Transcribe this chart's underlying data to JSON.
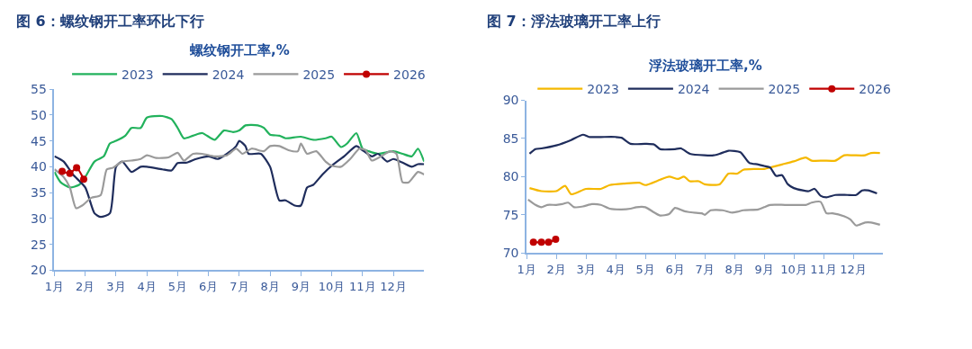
{
  "chart_data": [
    {
      "type": "line",
      "title": "图 6：螺纹钢开工率环比下行",
      "subtitle": "螺纹钢开工率,%",
      "legend": "top",
      "xlim": [
        1,
        13
      ],
      "xticks": [
        {
          "value": 1,
          "label": "1月"
        },
        {
          "value": 2,
          "label": "2月"
        },
        {
          "value": 3,
          "label": "3月"
        },
        {
          "value": 4,
          "label": "4月"
        },
        {
          "value": 5,
          "label": "5月"
        },
        {
          "value": 6,
          "label": "6月"
        },
        {
          "value": 7,
          "label": "7月"
        },
        {
          "value": 8,
          "label": "8月"
        },
        {
          "value": 9,
          "label": "9月"
        },
        {
          "value": 10,
          "label": "10月"
        },
        {
          "value": 11,
          "label": "11月"
        },
        {
          "value": 12,
          "label": "12月"
        }
      ],
      "ylim": [
        20,
        55
      ],
      "yticks": [
        20,
        25,
        30,
        35,
        40,
        45,
        50,
        55
      ],
      "series": [
        {
          "name": "2023",
          "color": "#22b25c",
          "x": [
            1.0,
            1.2,
            1.5,
            1.8,
            2.0,
            2.3,
            2.6,
            2.8,
            3.0,
            3.3,
            3.5,
            3.8,
            4.0,
            4.5,
            4.8,
            5.0,
            5.2,
            5.5,
            5.8,
            6.2,
            6.5,
            6.8,
            7.0,
            7.2,
            7.6,
            7.8,
            8.0,
            8.3,
            8.5,
            9.0,
            9.4,
            9.8,
            10.0,
            10.3,
            10.5,
            10.8,
            11.0,
            11.2,
            11.5,
            12.0,
            12.3,
            12.6,
            12.8,
            13.0
          ],
          "values": [
            39,
            37,
            36,
            36.5,
            38,
            41,
            42,
            44.5,
            45,
            46,
            47.5,
            47.5,
            49.5,
            49.8,
            49.2,
            47.5,
            45.5,
            46,
            46.5,
            45.2,
            47,
            46.7,
            47,
            48,
            48,
            47.5,
            46.2,
            46,
            45.5,
            45.8,
            45.2,
            45.5,
            45.8,
            43.8,
            44.5,
            46.5,
            43.5,
            43,
            42.5,
            43,
            42.5,
            42,
            43.5,
            41
          ]
        },
        {
          "name": "2024",
          "color": "#1f2d5c",
          "x": [
            1.0,
            1.3,
            1.6,
            2.0,
            2.3,
            2.5,
            2.8,
            3.0,
            3.2,
            3.5,
            3.8,
            4.0,
            4.5,
            4.8,
            5.0,
            5.3,
            5.6,
            6.0,
            6.3,
            6.6,
            6.9,
            7.0,
            7.2,
            7.3,
            7.7,
            8.0,
            8.3,
            8.5,
            8.8,
            9.0,
            9.2,
            9.4,
            9.7,
            10.0,
            10.4,
            10.8,
            11.0,
            11.3,
            11.5,
            11.8,
            12.0,
            12.3,
            12.6,
            12.8,
            13.0
          ],
          "values": [
            42,
            41,
            38.5,
            36,
            31,
            30.3,
            31,
            40,
            41,
            39,
            40,
            40,
            39.5,
            39.3,
            40.7,
            40.8,
            41.5,
            42,
            41.5,
            42.5,
            44,
            45,
            44,
            42.5,
            42.5,
            40,
            33.5,
            33.5,
            32.5,
            32.5,
            36,
            36.5,
            38.5,
            40.2,
            42,
            44,
            43.2,
            42,
            42.5,
            41,
            41.5,
            40.8,
            40,
            40.5,
            40.5
          ]
        },
        {
          "name": "2025",
          "color": "#9a9a9a",
          "x": [
            1.0,
            1.3,
            1.5,
            1.7,
            1.9,
            2.2,
            2.5,
            2.7,
            2.9,
            3.2,
            3.5,
            3.8,
            4.0,
            4.3,
            4.7,
            5.0,
            5.2,
            5.5,
            5.8,
            6.2,
            6.6,
            6.9,
            7.1,
            7.4,
            7.8,
            8.0,
            8.3,
            8.6,
            8.9,
            9.0,
            9.2,
            9.5,
            9.8,
            10.0,
            10.3,
            10.6,
            10.9,
            11.1,
            11.3,
            11.6,
            11.9,
            12.1,
            12.3,
            12.5,
            12.8,
            13.0
          ],
          "values": [
            39.5,
            38,
            36,
            32,
            32.5,
            34,
            34.5,
            39.5,
            39.8,
            41,
            41.2,
            41.5,
            42.2,
            41.7,
            41.8,
            42.7,
            41.2,
            42.5,
            42.5,
            42,
            42.2,
            43.5,
            42.5,
            43.5,
            43,
            44,
            44,
            43.2,
            43,
            44.5,
            42.5,
            43,
            41,
            40.2,
            40,
            41.5,
            43.5,
            43.2,
            41.2,
            42,
            43,
            42.5,
            37,
            37,
            39,
            38.5
          ]
        },
        {
          "name": "2026",
          "color": "#c00000",
          "marker": "circle",
          "x": [
            1.25,
            1.5,
            1.72,
            1.95
          ],
          "values": [
            39.1,
            38.7,
            39.8,
            37.6
          ]
        }
      ]
    },
    {
      "type": "line",
      "title": "图 7：浮法玻璃开工率上行",
      "subtitle": "浮法玻璃开工率,%",
      "legend": "top",
      "xlim": [
        1,
        13
      ],
      "xticks": [
        {
          "value": 1,
          "label": "1月"
        },
        {
          "value": 2,
          "label": "2月"
        },
        {
          "value": 3,
          "label": "3月"
        },
        {
          "value": 4,
          "label": "4月"
        },
        {
          "value": 5,
          "label": "5月"
        },
        {
          "value": 6,
          "label": "6月"
        },
        {
          "value": 7,
          "label": "7月"
        },
        {
          "value": 8,
          "label": "8月"
        },
        {
          "value": 9,
          "label": "9月"
        },
        {
          "value": 10,
          "label": "10月"
        },
        {
          "value": 11,
          "label": "11月"
        },
        {
          "value": 12,
          "label": "12月"
        }
      ],
      "ylim": [
        70,
        90
      ],
      "yticks": [
        70,
        75,
        80,
        85,
        90
      ],
      "series": [
        {
          "name": "2023",
          "color": "#f5b800",
          "x": [
            1.1,
            1.5,
            2.0,
            2.3,
            2.5,
            3.0,
            3.5,
            3.8,
            4.3,
            4.8,
            5.0,
            5.5,
            5.8,
            6.1,
            6.3,
            6.5,
            6.8,
            7.0,
            7.5,
            7.8,
            8.1,
            8.3,
            8.7,
            9.0,
            9.3,
            9.6,
            10.0,
            10.4,
            10.6,
            11.0,
            11.4,
            11.7,
            12.0,
            12.4,
            12.6,
            12.9
          ],
          "values": [
            78.5,
            78.1,
            78.1,
            78.8,
            77.7,
            78.4,
            78.4,
            78.9,
            79.1,
            79.2,
            78.9,
            79.6,
            80,
            79.7,
            80,
            79.4,
            79.4,
            79,
            79,
            80.4,
            80.4,
            80.9,
            81,
            81,
            81.3,
            81.6,
            82,
            82.5,
            82.1,
            82.1,
            82.1,
            82.8,
            82.8,
            82.8,
            83.1,
            83.1
          ]
        },
        {
          "name": "2024",
          "color": "#1f2d5c",
          "x": [
            1.1,
            1.3,
            1.5,
            2.0,
            2.5,
            2.9,
            3.1,
            3.5,
            4.0,
            4.2,
            4.5,
            5.0,
            5.3,
            5.5,
            6.0,
            6.2,
            6.5,
            7.0,
            7.3,
            7.5,
            7.8,
            8.2,
            8.5,
            8.8,
            9.0,
            9.2,
            9.4,
            9.6,
            9.8,
            10.0,
            10.3,
            10.5,
            10.7,
            10.9,
            11.1,
            11.4,
            11.8,
            12.1,
            12.3,
            12.5,
            12.8
          ],
          "values": [
            83,
            83.6,
            83.7,
            84.1,
            84.8,
            85.5,
            85.2,
            85.2,
            85.2,
            85.1,
            84.3,
            84.3,
            84.2,
            83.6,
            83.6,
            83.7,
            83,
            82.8,
            82.8,
            83,
            83.4,
            83.2,
            81.8,
            81.6,
            81.4,
            81.2,
            80.1,
            80.2,
            79,
            78.5,
            78.2,
            78.1,
            78.4,
            77.5,
            77.3,
            77.6,
            77.6,
            77.6,
            78.2,
            78.2,
            77.8
          ]
        },
        {
          "name": "2025",
          "color": "#9a9a9a",
          "x": [
            1.05,
            1.3,
            1.5,
            1.7,
            2.0,
            2.2,
            2.4,
            2.6,
            2.9,
            3.2,
            3.5,
            3.8,
            4.2,
            4.5,
            4.7,
            5.0,
            5.3,
            5.5,
            5.8,
            6.0,
            6.3,
            6.6,
            6.9,
            7.0,
            7.2,
            7.6,
            7.9,
            8.1,
            8.3,
            8.8,
            9.0,
            9.2,
            9.7,
            10.0,
            10.4,
            10.6,
            10.9,
            11.1,
            11.3,
            11.7,
            11.9,
            12.1,
            12.4,
            12.6,
            12.9
          ],
          "values": [
            77,
            76.3,
            76,
            76.3,
            76.3,
            76.4,
            76.6,
            76,
            76.1,
            76.4,
            76.3,
            75.8,
            75.7,
            75.8,
            76,
            76,
            75.3,
            74.9,
            75.1,
            75.9,
            75.5,
            75.3,
            75.2,
            75,
            75.6,
            75.6,
            75.3,
            75.4,
            75.6,
            75.7,
            76,
            76.3,
            76.3,
            76.3,
            76.3,
            76.6,
            76.7,
            75.2,
            75.2,
            74.8,
            74.4,
            73.6,
            74,
            74,
            73.7
          ]
        },
        {
          "name": "2026",
          "color": "#c00000",
          "marker": "circle",
          "x": [
            1.23,
            1.5,
            1.74,
            1.98
          ],
          "values": [
            71.4,
            71.4,
            71.4,
            71.8
          ]
        }
      ]
    }
  ]
}
